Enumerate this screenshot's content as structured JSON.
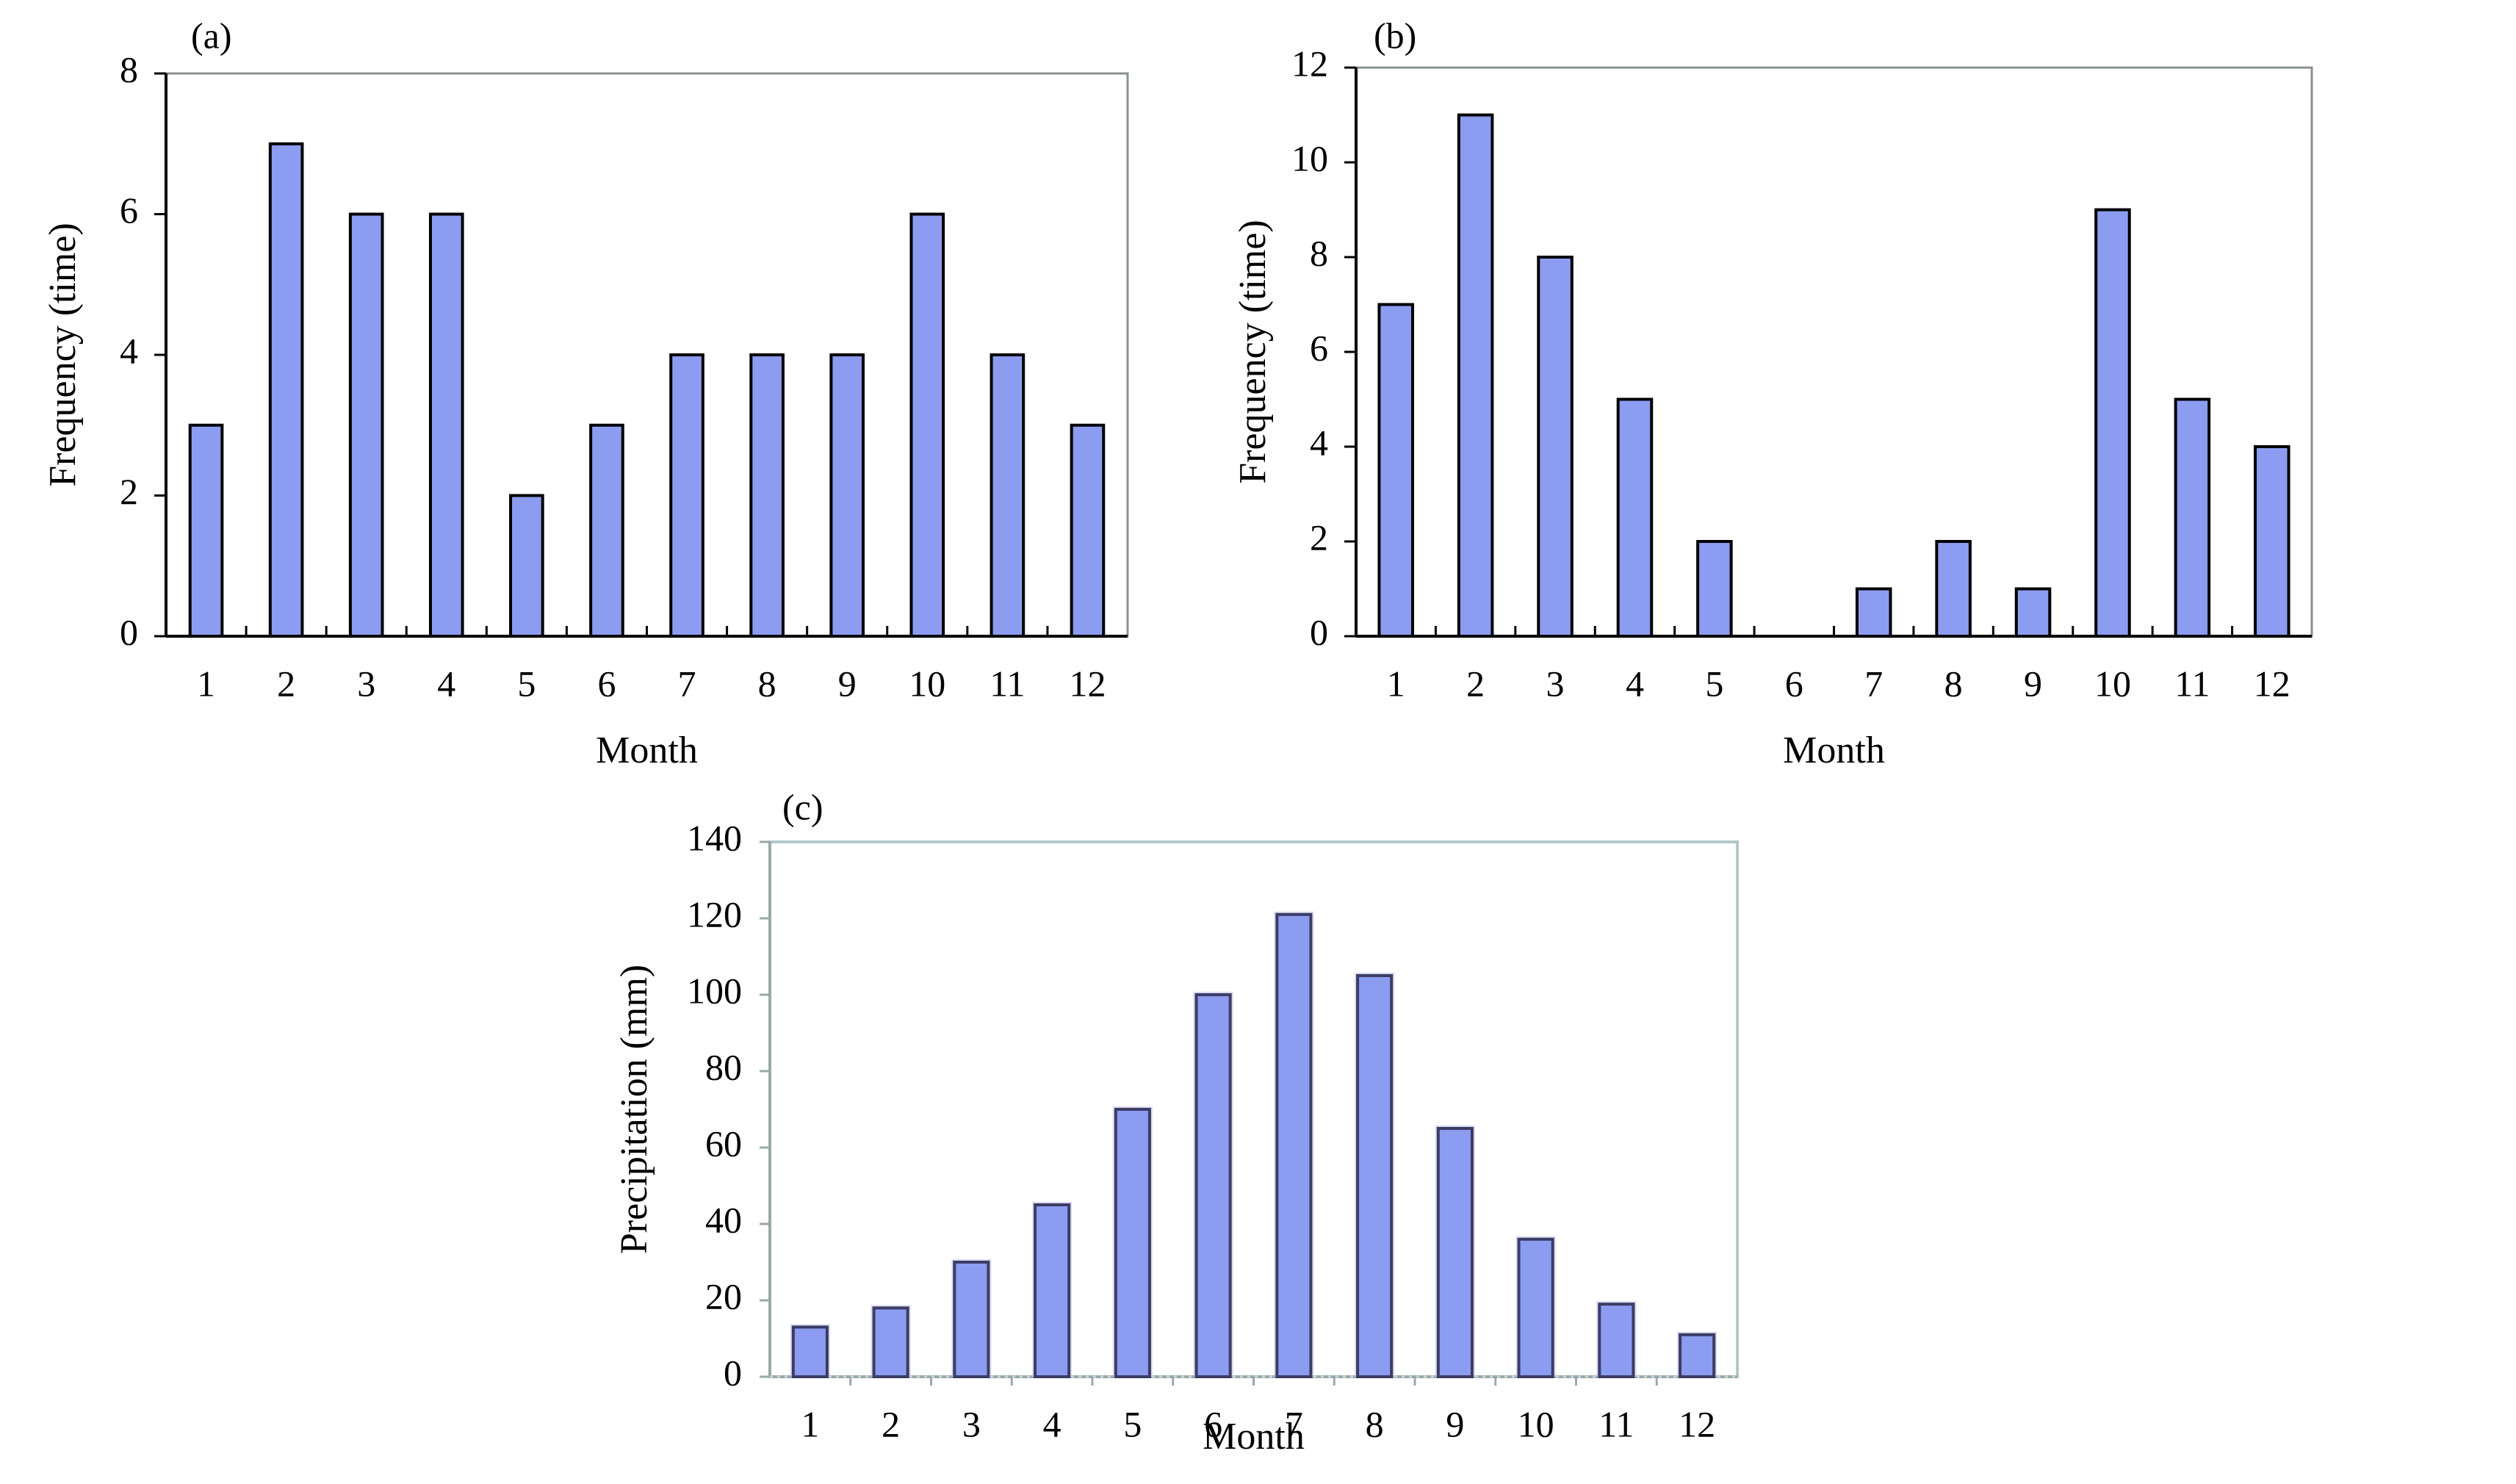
{
  "chart_data": [
    {
      "type": "bar",
      "panel_label": "(a)",
      "categories": [
        "1",
        "2",
        "3",
        "4",
        "5",
        "6",
        "7",
        "8",
        "9",
        "10",
        "11",
        "12"
      ],
      "values": [
        3,
        7,
        6,
        6,
        2,
        3,
        4,
        4,
        4,
        6,
        4,
        3
      ],
      "xlabel": "Month",
      "ylabel": "Frequency (time)",
      "ylim": [
        0,
        8
      ],
      "yticks": [
        "0",
        "2",
        "4",
        "6",
        "8"
      ],
      "grid": false,
      "colors": {
        "bar_fill": "#8c9cf0",
        "bar_stroke": "#000000",
        "frame": "#8a9090"
      }
    },
    {
      "type": "bar",
      "panel_label": "(b)",
      "categories": [
        "1",
        "2",
        "3",
        "4",
        "5",
        "6",
        "7",
        "8",
        "9",
        "10",
        "11",
        "12"
      ],
      "values": [
        7,
        11,
        8,
        5,
        2,
        0,
        1,
        2,
        1,
        9,
        5,
        4
      ],
      "xlabel": "Month",
      "ylabel": "Frequency (time)",
      "ylim": [
        0,
        12
      ],
      "yticks": [
        "0",
        "2",
        "4",
        "6",
        "8",
        "10",
        "12"
      ],
      "grid": false,
      "colors": {
        "bar_fill": "#8c9cf0",
        "bar_stroke": "#000000",
        "frame": "#8a9090"
      }
    },
    {
      "type": "bar",
      "panel_label": "(c)",
      "categories": [
        "1",
        "2",
        "3",
        "4",
        "5",
        "6",
        "7",
        "8",
        "9",
        "10",
        "11",
        "12"
      ],
      "values": [
        13,
        18,
        30,
        45,
        70,
        100,
        121,
        105,
        65,
        36,
        19,
        11
      ],
      "xlabel": "Month",
      "ylabel": "Precipitation (mm)",
      "ylim": [
        0,
        140
      ],
      "yticks": [
        "0",
        "20",
        "40",
        "60",
        "80",
        "100",
        "120",
        "140"
      ],
      "grid": false,
      "colors": {
        "bar_fill": "#8c9cf0",
        "bar_stroke": "#3c3c64",
        "frame": "#b4c8c8"
      }
    }
  ]
}
